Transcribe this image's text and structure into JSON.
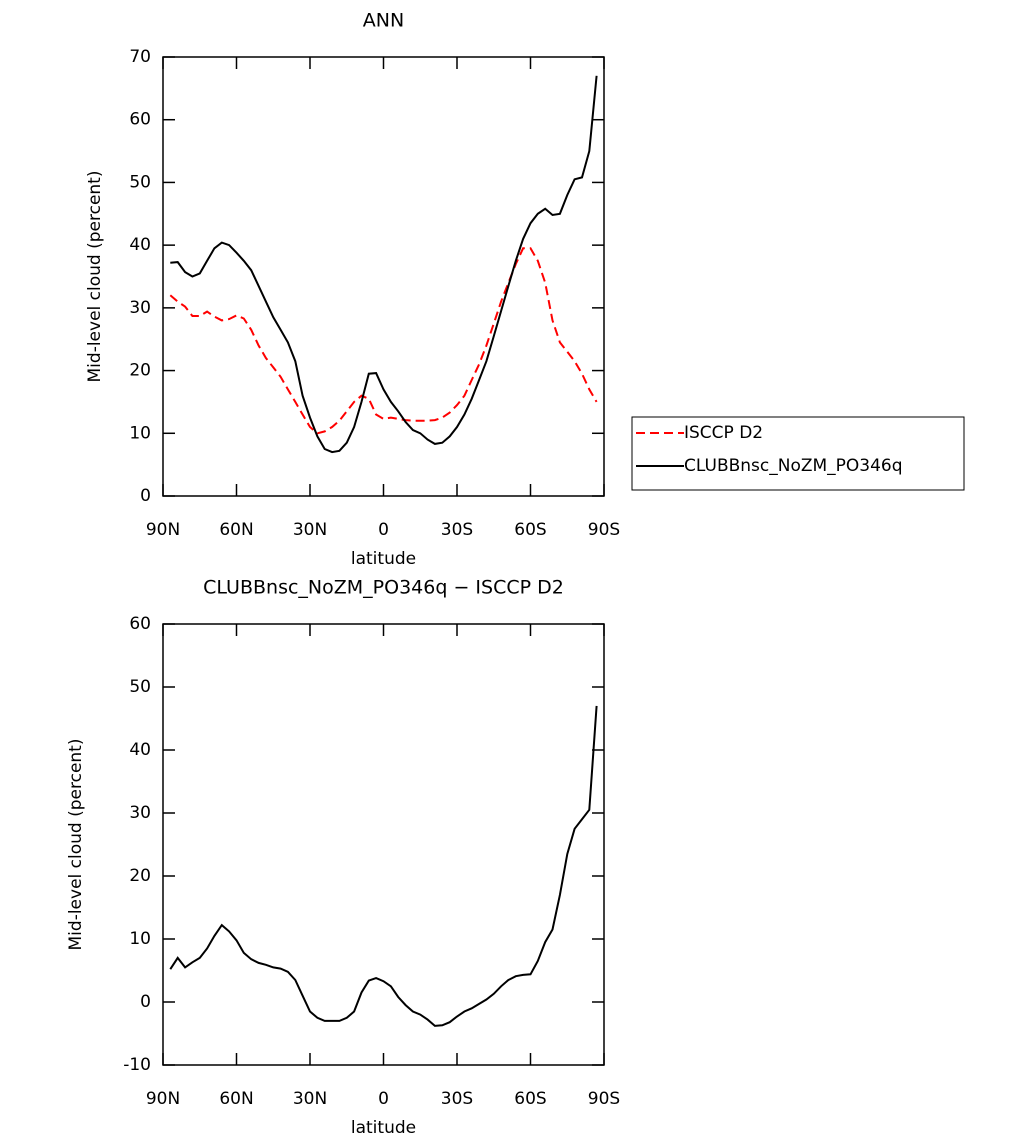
{
  "chart_data": [
    {
      "type": "line",
      "title": "ANN",
      "xlabel": "latitude",
      "ylabel": "Mid-level cloud (percent)",
      "x": [
        87,
        84,
        81,
        78,
        75,
        72,
        69,
        66,
        63,
        60,
        57,
        54,
        51,
        48,
        45,
        42,
        39,
        36,
        33,
        30,
        27,
        24,
        21,
        18,
        15,
        12,
        9,
        6,
        3,
        0,
        -3,
        -6,
        -9,
        -12,
        -15,
        -18,
        -21,
        -24,
        -27,
        -30,
        -33,
        -36,
        -39,
        -42,
        -45,
        -48,
        -51,
        -54,
        -57,
        -60,
        -63,
        -66,
        -69,
        -72,
        -75,
        -78,
        -81,
        -84,
        -87
      ],
      "series": [
        {
          "name": "ISCCP D2",
          "color": "#ff0000",
          "linestyle": "dashed",
          "values": [
            32,
            31,
            30.2,
            28.7,
            28.7,
            29.4,
            28.6,
            28,
            28.2,
            28.8,
            28.3,
            26.5,
            24,
            22,
            20.5,
            19,
            17,
            15,
            13,
            11,
            10,
            10.3,
            11,
            12,
            13.5,
            15,
            16,
            15.5,
            13,
            12.3,
            12.5,
            12.3,
            12.1,
            12,
            12,
            12,
            12.1,
            12.5,
            13.3,
            14.5,
            16,
            18.5,
            21,
            24,
            27.5,
            31,
            34,
            37,
            39.5,
            39.5,
            37.5,
            34,
            28,
            24.5,
            23,
            21.5,
            19.5,
            17,
            15
          ]
        },
        {
          "name": "CLUBBnsc_NoZM_PO346q",
          "color": "#000000",
          "linestyle": "solid",
          "values": [
            37.2,
            37.3,
            35.7,
            35,
            35.5,
            37.5,
            39.5,
            40.4,
            40,
            38.8,
            37.5,
            36,
            33.5,
            31,
            28.5,
            26.5,
            24.5,
            21.5,
            16,
            12.5,
            9.5,
            7.5,
            7,
            7.2,
            8.5,
            11,
            15,
            19.5,
            19.6,
            17,
            15,
            13.5,
            11.8,
            10.5,
            10,
            9,
            8.3,
            8.5,
            9.5,
            11,
            13,
            15.5,
            18.5,
            21.5,
            25.5,
            29.5,
            33.5,
            37.5,
            41,
            43.5,
            45,
            45.8,
            44.8,
            45,
            48,
            50.5,
            50.8,
            55,
            67
          ]
        }
      ],
      "xlim": [
        90,
        -90
      ],
      "xticks": [
        {
          "value": 90,
          "label": "90N"
        },
        {
          "value": 60,
          "label": "60N"
        },
        {
          "value": 30,
          "label": "30N"
        },
        0,
        {
          "value": -30,
          "label": "30S"
        },
        {
          "value": -60,
          "label": "60S"
        },
        {
          "value": -90,
          "label": "90S"
        }
      ],
      "ylim": [
        0,
        70
      ],
      "yticks": [
        0,
        10,
        20,
        30,
        40,
        50,
        60,
        70
      ],
      "legend": "right"
    },
    {
      "type": "line",
      "title": "CLUBBnsc_NoZM_PO346q − ISCCP D2",
      "xlabel": "latitude",
      "ylabel": "Mid-level cloud (percent)",
      "x": [
        87,
        84,
        81,
        78,
        75,
        72,
        69,
        66,
        63,
        60,
        57,
        54,
        51,
        48,
        45,
        42,
        39,
        36,
        33,
        30,
        27,
        24,
        21,
        18,
        15,
        12,
        9,
        6,
        3,
        0,
        -3,
        -6,
        -9,
        -12,
        -15,
        -18,
        -21,
        -24,
        -27,
        -30,
        -33,
        -36,
        -39,
        -42,
        -45,
        -48,
        -51,
        -54,
        -57,
        -60,
        -63,
        -66,
        -69,
        -72,
        -75,
        -78,
        -81,
        -84,
        -87
      ],
      "series": [
        {
          "color": "#000000",
          "linestyle": "solid",
          "values": [
            5.2,
            7,
            5.5,
            6.3,
            7,
            8.5,
            10.5,
            12.2,
            11.2,
            9.8,
            7.8,
            6.8,
            6.2,
            5.9,
            5.5,
            5.3,
            4.8,
            3.5,
            1,
            -1.5,
            -2.5,
            -3,
            -3,
            -3,
            -2.5,
            -1.5,
            1.5,
            3.4,
            3.8,
            3.3,
            2.5,
            0.8,
            -0.5,
            -1.5,
            -2,
            -2.8,
            -3.8,
            -3.7,
            -3.2,
            -2.3,
            -1.5,
            -1,
            -0.3,
            0.4,
            1.3,
            2.5,
            3.5,
            4.1,
            4.3,
            4.4,
            6.5,
            9.5,
            11.5,
            17,
            23.5,
            27.5,
            29,
            30.5,
            47
          ]
        }
      ],
      "xlim": [
        90,
        -90
      ],
      "xticks": [
        {
          "value": 90,
          "label": "90N"
        },
        {
          "value": 60,
          "label": "60N"
        },
        {
          "value": 30,
          "label": "30N"
        },
        0,
        {
          "value": -30,
          "label": "30S"
        },
        {
          "value": -60,
          "label": "60S"
        },
        {
          "value": -90,
          "label": "90S"
        }
      ],
      "ylim": [
        -10,
        60
      ],
      "yticks": [
        -10,
        0,
        10,
        20,
        30,
        40,
        50,
        60
      ]
    }
  ]
}
